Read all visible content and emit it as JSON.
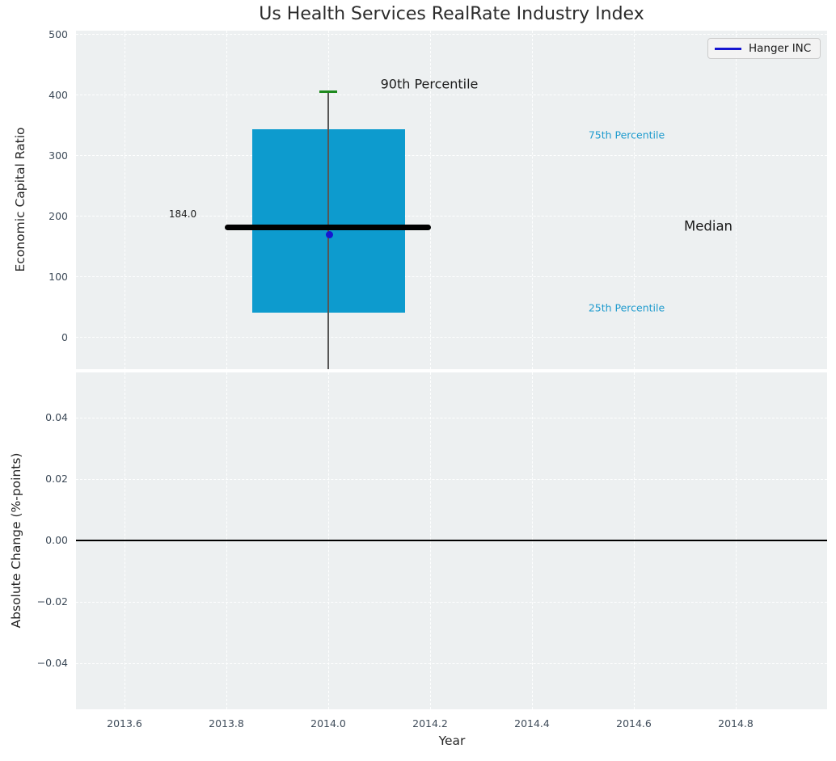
{
  "title": "Us Health Services RealRate Industry Index",
  "legend": {
    "label": "Hanger INC",
    "line_color": "#1616d1"
  },
  "xlabel": "Year",
  "xticks": [
    "2013.6",
    "2013.8",
    "2014.0",
    "2014.2",
    "2014.4",
    "2014.6",
    "2014.8"
  ],
  "top_plot": {
    "ylabel": "Economic Capital Ratio",
    "yticks": [
      "500",
      "400",
      "300",
      "200",
      "100",
      "0"
    ],
    "annotations": {
      "p90_label": "90th Percentile",
      "p75_label": "75th Percentile",
      "median_label": "Median",
      "p25_label": "25th Percentile",
      "median_value": "184.0"
    },
    "colors": {
      "box_fill": "#0d9bce",
      "median_line": "#000000",
      "whisker_line": "#565656",
      "whisker_cap": "#1e8a1e",
      "company_dot": "#1616d1",
      "percentile_text": "#1f9bce",
      "plot_background": "#edf0f1"
    }
  },
  "bottom_plot": {
    "ylabel": "Absolute Change (%-points)",
    "yticks": [
      "0.04",
      "0.02",
      "0.00",
      "−0.02",
      "−0.04"
    ]
  },
  "chart_data": [
    {
      "type": "box",
      "title": "Us Health Services RealRate Industry Index",
      "xlabel": "Year",
      "ylabel": "Economic Capital Ratio",
      "xlim": [
        2013.51,
        2014.97
      ],
      "ylim": [
        -55,
        500
      ],
      "xticks": [
        2013.6,
        2013.8,
        2014.0,
        2014.2,
        2014.4,
        2014.6,
        2014.8
      ],
      "yticks": [
        0,
        100,
        200,
        300,
        400,
        500
      ],
      "grid": true,
      "legend_position": "upper right",
      "box": {
        "x": 2014.0,
        "box_width_years": 0.3,
        "median": 184.0,
        "p25": 40,
        "p75": 341,
        "p90": 404,
        "whisker_low": "clipped below axis (< -55)"
      },
      "series": [
        {
          "name": "Hanger INC",
          "type": "scatter",
          "x": [
            2014.0
          ],
          "y": [
            170
          ],
          "color": "#1616d1"
        }
      ],
      "annotations": [
        "90th Percentile",
        "75th Percentile",
        "Median",
        "25th Percentile",
        "184.0"
      ]
    },
    {
      "type": "line",
      "xlabel": "Year",
      "ylabel": "Absolute Change (%-points)",
      "xlim": [
        2013.51,
        2014.97
      ],
      "ylim": [
        -0.055,
        0.055
      ],
      "xticks": [
        2013.6,
        2013.8,
        2014.0,
        2014.2,
        2014.4,
        2014.6,
        2014.8
      ],
      "yticks": [
        0.04,
        0.02,
        0.0,
        -0.02,
        -0.04
      ],
      "grid": true,
      "series": [],
      "reference_line_y": 0.0
    }
  ]
}
